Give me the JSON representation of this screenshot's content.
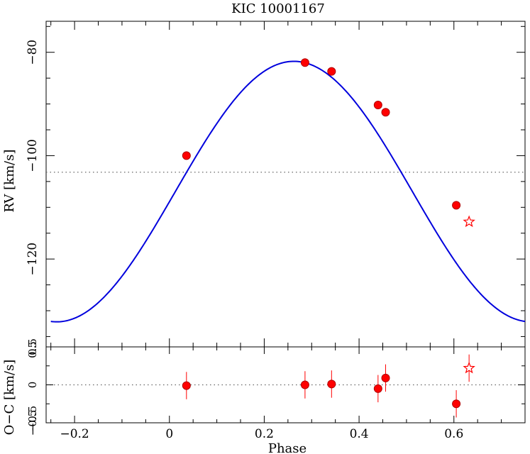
{
  "chart_data": [
    {
      "type": "line",
      "title": "KIC 10001167",
      "xlabel": "",
      "ylabel": "RV [km/s]",
      "xlim": [
        -0.26,
        0.75
      ],
      "ylim": [
        -137,
        -74
      ],
      "x_ticks": [
        "−0.2",
        "0",
        "0.2",
        "0.4",
        "0.6"
      ],
      "y_ticks": [
        "−80",
        "−100",
        "−120"
      ],
      "systemic_velocity": -103.2,
      "model_curve": {
        "shape": "sinusoid",
        "offset": -106.95,
        "amplitude": 25.2,
        "peak_phase": 0.2625,
        "x_range": [
          -0.25,
          0.75
        ],
        "color": "#0000dd"
      },
      "points": [
        {
          "x": 0.036,
          "y": -100.0
        },
        {
          "x": 0.286,
          "y": -82.0
        },
        {
          "x": 0.342,
          "y": -83.7
        },
        {
          "x": 0.44,
          "y": -90.2
        },
        {
          "x": 0.456,
          "y": -91.6
        },
        {
          "x": 0.605,
          "y": -109.6
        }
      ],
      "star_points": [
        {
          "x": 0.632,
          "y": -112.8
        }
      ],
      "point_color": "#ff0000"
    },
    {
      "type": "scatter",
      "title": "",
      "xlabel": "Phase",
      "ylabel": "O−C [km/s]",
      "xlim": [
        -0.26,
        0.75
      ],
      "ylim": [
        -0.5,
        0.5
      ],
      "x_ticks": [
        "−0.2",
        "0",
        "0.2",
        "0.4",
        "0.6"
      ],
      "y_ticks": [
        "0.5",
        "0",
        "−0.5"
      ],
      "y_ticks_minor": [
        "0.5",
        "−0.5"
      ],
      "zero_line": 0,
      "points": [
        {
          "x": 0.036,
          "y": -0.01,
          "err": 0.18
        },
        {
          "x": 0.286,
          "y": 0.0,
          "err": 0.18
        },
        {
          "x": 0.342,
          "y": 0.01,
          "err": 0.18
        },
        {
          "x": 0.44,
          "y": -0.05,
          "err": 0.18
        },
        {
          "x": 0.456,
          "y": 0.09,
          "err": 0.18
        },
        {
          "x": 0.605,
          "y": -0.25,
          "err": 0.18
        }
      ],
      "star_points": [
        {
          "x": 0.632,
          "y": 0.22,
          "err": 0.18
        }
      ],
      "point_color": "#ff0000"
    }
  ]
}
